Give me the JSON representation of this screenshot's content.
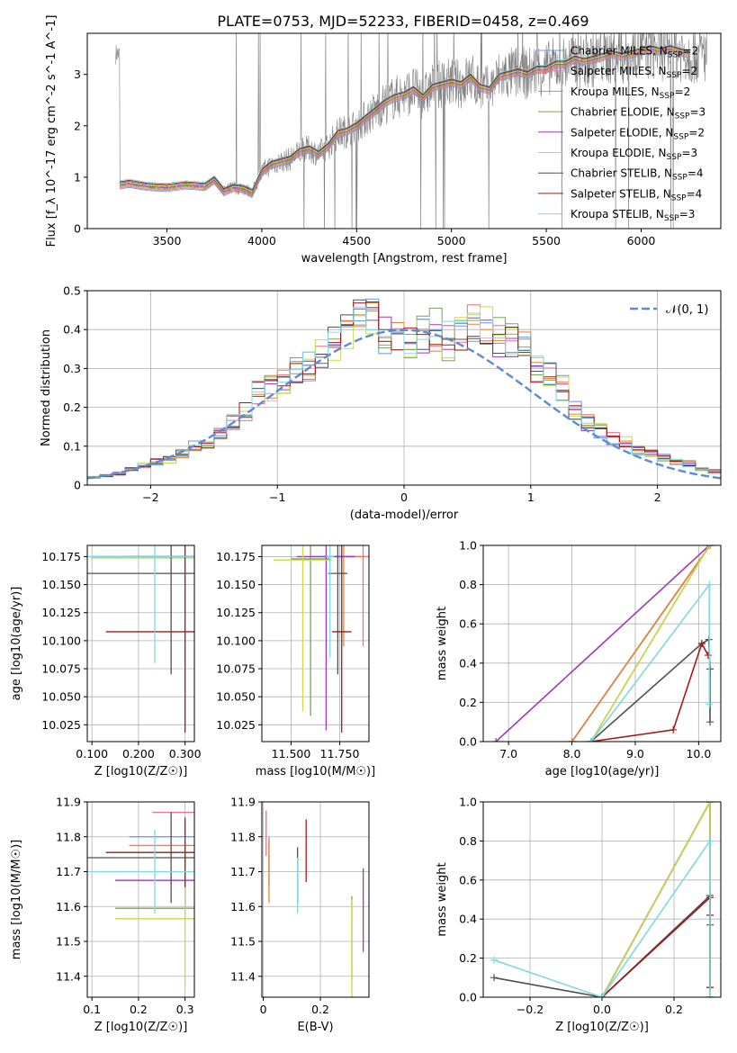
{
  "title": "PLATE=0753, MJD=52233, FIBERID=0458, z=0.469",
  "colors": {
    "Chabrier MILES": "#6495ed",
    "Salpeter MILES": "#e8718d",
    "Kroupa MILES": "#e0853a",
    "Chabrier ELODIE": "#7aa35a",
    "Salpeter ELODIE": "#9b3cb7",
    "Kroupa ELODIE": "#c9d94a",
    "Chabrier STELIB": "#505050",
    "Salpeter STELIB": "#a01a1a",
    "Kroupa STELIB": "#7fd8e0",
    "data": "#808080",
    "normal": "#5b8bd6"
  },
  "legend": [
    {
      "model": "Chabrier MILES",
      "n": "2"
    },
    {
      "model": "Salpeter MILES",
      "n": "2"
    },
    {
      "model": "Kroupa MILES",
      "n": "2"
    },
    {
      "model": "Chabrier ELODIE",
      "n": "3"
    },
    {
      "model": "Salpeter ELODIE",
      "n": "2"
    },
    {
      "model": "Kroupa ELODIE",
      "n": "3"
    },
    {
      "model": "Chabrier STELIB",
      "n": "4"
    },
    {
      "model": "Salpeter STELIB",
      "n": "4"
    },
    {
      "model": "Kroupa STELIB",
      "n": "3"
    }
  ],
  "chart_data": [
    {
      "id": "spectrum",
      "type": "line",
      "xlabel": "wavelength [Angstrom, rest frame]",
      "ylabel": "Flux [f_λ 10^-17 erg cm^-2 s^-1 A^-1]",
      "xlim": [
        3080,
        6420
      ],
      "ylim": [
        0,
        3.8
      ],
      "xticks": [
        3500,
        4000,
        4500,
        5000,
        5500,
        6000
      ],
      "yticks": [
        0,
        1,
        2,
        3
      ],
      "data_series": {
        "name": "data",
        "x_range": [
          3230,
          6350
        ],
        "note_points": [
          [
            3260,
            0.85
          ],
          [
            3400,
            0.8
          ],
          [
            3600,
            0.75
          ],
          [
            3800,
            0.8
          ],
          [
            4000,
            1.2
          ],
          [
            4200,
            1.5
          ],
          [
            4400,
            1.8
          ],
          [
            4600,
            2.4
          ],
          [
            4800,
            2.7
          ],
          [
            5000,
            2.9
          ],
          [
            5200,
            3.0
          ],
          [
            5400,
            3.1
          ],
          [
            5600,
            3.2
          ],
          [
            5800,
            3.3
          ],
          [
            6000,
            3.35
          ],
          [
            6200,
            3.4
          ]
        ]
      },
      "model_points": [
        [
          3250,
          0.85
        ],
        [
          3300,
          0.88
        ],
        [
          3400,
          0.82
        ],
        [
          3500,
          0.8
        ],
        [
          3600,
          0.85
        ],
        [
          3700,
          0.82
        ],
        [
          3750,
          0.95
        ],
        [
          3800,
          0.72
        ],
        [
          3850,
          0.8
        ],
        [
          3900,
          0.78
        ],
        [
          3950,
          0.7
        ],
        [
          4000,
          1.1
        ],
        [
          4050,
          1.25
        ],
        [
          4100,
          1.3
        ],
        [
          4150,
          1.35
        ],
        [
          4200,
          1.5
        ],
        [
          4250,
          1.55
        ],
        [
          4300,
          1.45
        ],
        [
          4350,
          1.6
        ],
        [
          4400,
          1.85
        ],
        [
          4450,
          1.9
        ],
        [
          4500,
          2.0
        ],
        [
          4550,
          2.15
        ],
        [
          4600,
          2.3
        ],
        [
          4650,
          2.45
        ],
        [
          4700,
          2.55
        ],
        [
          4750,
          2.6
        ],
        [
          4800,
          2.7
        ],
        [
          4850,
          2.55
        ],
        [
          4900,
          2.75
        ],
        [
          4950,
          2.8
        ],
        [
          5000,
          2.85
        ],
        [
          5050,
          2.8
        ],
        [
          5100,
          2.95
        ],
        [
          5150,
          2.75
        ],
        [
          5200,
          2.7
        ],
        [
          5250,
          2.95
        ],
        [
          5300,
          3.0
        ],
        [
          5350,
          3.05
        ],
        [
          5400,
          3.0
        ],
        [
          5450,
          3.1
        ],
        [
          5500,
          3.1
        ],
        [
          5550,
          3.2
        ],
        [
          5600,
          3.2
        ],
        [
          5650,
          3.3
        ],
        [
          5700,
          3.25
        ],
        [
          5750,
          3.3
        ],
        [
          5800,
          3.35
        ],
        [
          5850,
          3.4
        ],
        [
          5900,
          3.35
        ],
        [
          5950,
          3.4
        ],
        [
          6000,
          3.45
        ],
        [
          6050,
          3.5
        ],
        [
          6100,
          3.45
        ],
        [
          6150,
          3.5
        ],
        [
          6200,
          3.45
        ],
        [
          6250,
          3.4
        ]
      ]
    },
    {
      "id": "residuals",
      "type": "histogram",
      "xlabel": "(data-model)/error",
      "ylabel": "Normed distribution",
      "xlim": [
        -2.5,
        2.5
      ],
      "ylim": [
        0,
        0.5
      ],
      "xticks": [
        -2,
        -1,
        0,
        1,
        2
      ],
      "yticks": [
        0.0,
        0.1,
        0.2,
        0.3,
        0.4,
        0.5
      ],
      "bin_width": 0.1,
      "hist_shape": [
        0.02,
        0.025,
        0.03,
        0.035,
        0.04,
        0.05,
        0.06,
        0.065,
        0.08,
        0.09,
        0.1,
        0.11,
        0.13,
        0.16,
        0.19,
        0.22,
        0.24,
        0.25,
        0.27,
        0.3,
        0.31,
        0.32,
        0.35,
        0.37,
        0.39,
        0.42,
        0.43,
        0.4,
        0.38,
        0.37,
        0.38,
        0.39,
        0.4,
        0.38,
        0.37,
        0.39,
        0.41,
        0.42,
        0.38,
        0.36,
        0.37,
        0.35,
        0.3,
        0.28,
        0.25,
        0.22,
        0.19,
        0.16,
        0.14,
        0.12,
        0.11,
        0.1,
        0.09,
        0.08,
        0.07,
        0.06,
        0.055,
        0.05,
        0.04,
        0.035
      ],
      "normal_label": "𝒩(0, 1)"
    },
    {
      "id": "age_vs_Z",
      "type": "errorbar",
      "xlabel": "Z [log10(Z/Z☉)]",
      "ylabel": "age  [log10(age/yr)]",
      "xlim": [
        0.09,
        0.32
      ],
      "ylim": [
        10.01,
        10.185
      ],
      "xticks": [
        0.1,
        0.2,
        0.3
      ],
      "yticks": [
        10.025,
        10.05,
        10.075,
        10.1,
        10.125,
        10.15,
        10.175
      ],
      "points": [
        {
          "s": "Chabrier MILES",
          "x": 0.3,
          "xerr": 0.2,
          "y": 10.175,
          "yerr": 0.001
        },
        {
          "s": "Salpeter MILES",
          "x": 0.3,
          "xerr": 0.12,
          "y": 10.175,
          "yerr": 0.001
        },
        {
          "s": "Kroupa MILES",
          "x": 0.3,
          "xerr": 0.2,
          "y": 10.174,
          "yerr": 0.001
        },
        {
          "s": "Chabrier ELODIE",
          "x": 0.3,
          "xerr": 0.2,
          "y": 10.174,
          "yerr": 0.001
        },
        {
          "s": "Salpeter ELODIE",
          "x": 0.3,
          "xerr": 0.14,
          "y": 10.175,
          "yerr": 0.001
        },
        {
          "s": "Kroupa ELODIE",
          "x": 0.3,
          "xerr": 0.2,
          "y": 10.174,
          "yerr": 0.001
        },
        {
          "s": "Chabrier STELIB",
          "x": 0.27,
          "xerr": 0.18,
          "y": 10.16,
          "yerr": 0.09
        },
        {
          "s": "Salpeter STELIB",
          "x": 0.3,
          "xerr": 0.17,
          "y": 10.108,
          "yerr": 0.09
        },
        {
          "s": "Kroupa STELIB",
          "x": 0.235,
          "xerr": 0.15,
          "y": 10.175,
          "yerr": 0.095
        }
      ]
    },
    {
      "id": "age_vs_mass",
      "type": "errorbar",
      "xlabel": "mass [log10(M/M☉)]",
      "ylabel": "",
      "xlim": [
        11.35,
        11.9
      ],
      "ylim": [
        10.01,
        10.185
      ],
      "xticks": [
        11.5,
        11.75
      ],
      "yticks": [
        10.025,
        10.05,
        10.075,
        10.1,
        10.125,
        10.15,
        10.175
      ],
      "points": [
        {
          "s": "Chabrier MILES",
          "x": 11.7,
          "xerr": 0.09,
          "y": 10.175,
          "yerr": 0.001
        },
        {
          "s": "Salpeter MILES",
          "x": 11.87,
          "xerr": 0.09,
          "y": 10.175,
          "yerr": 0.08
        },
        {
          "s": "Kroupa MILES",
          "x": 11.77,
          "xerr": 0.1,
          "y": 10.175,
          "yerr": 0.08
        },
        {
          "s": "Chabrier ELODIE",
          "x": 11.6,
          "xerr": 0.1,
          "y": 10.173,
          "yerr": 0.14
        },
        {
          "s": "Salpeter ELODIE",
          "x": 11.68,
          "xerr": 0.15,
          "y": 10.175,
          "yerr": 0.155
        },
        {
          "s": "Kroupa ELODIE",
          "x": 11.56,
          "xerr": 0.15,
          "y": 10.172,
          "yerr": 0.135
        },
        {
          "s": "Chabrier STELIB",
          "x": 11.74,
          "xerr": 0.05,
          "y": 10.16,
          "yerr": 0.09
        },
        {
          "s": "Salpeter STELIB",
          "x": 11.76,
          "xerr": 0.05,
          "y": 10.108,
          "yerr": 0.09
        },
        {
          "s": "Kroupa STELIB",
          "x": 11.7,
          "xerr": 0.02,
          "y": 10.175,
          "yerr": 0.09
        }
      ]
    },
    {
      "id": "mw_vs_age",
      "type": "line",
      "xlabel": "age  [log10(age/yr)]",
      "ylabel": "mass weight",
      "xlim": [
        6.6,
        10.35
      ],
      "ylim": [
        0,
        1.0
      ],
      "xticks": [
        7,
        8,
        9,
        10
      ],
      "yticks": [
        0.0,
        0.2,
        0.4,
        0.6,
        0.8,
        1.0
      ],
      "series": [
        {
          "s": "Chabrier MILES",
          "x": [
            8.0,
            10.18
          ],
          "y": [
            0,
            1
          ]
        },
        {
          "s": "Salpeter MILES",
          "x": [
            8.0,
            10.18
          ],
          "y": [
            0,
            1
          ]
        },
        {
          "s": "Kroupa MILES",
          "x": [
            8.0,
            10.18
          ],
          "y": [
            0,
            1
          ]
        },
        {
          "s": "Chabrier ELODIE",
          "x": [
            8.3,
            10.17
          ],
          "y": [
            0,
            1
          ]
        },
        {
          "s": "Salpeter ELODIE",
          "x": [
            6.8,
            10.17
          ],
          "y": [
            0,
            1
          ]
        },
        {
          "s": "Kroupa ELODIE",
          "x": [
            8.3,
            10.17
          ],
          "y": [
            0,
            1
          ]
        },
        {
          "s": "Chabrier STELIB",
          "x": [
            8.3,
            10.05,
            10.16,
            10.18,
            10.18
          ],
          "y": [
            0,
            0.5,
            0.52,
            0.37,
            0.1
          ]
        },
        {
          "s": "Salpeter STELIB",
          "x": [
            8.3,
            9.6,
            10.05,
            10.15
          ],
          "y": [
            0,
            0.06,
            0.5,
            0.44
          ]
        },
        {
          "s": "Kroupa STELIB",
          "x": [
            8.3,
            10.17,
            10.17
          ],
          "y": [
            0,
            0.8,
            0.19
          ]
        }
      ]
    },
    {
      "id": "mass_vs_Z",
      "type": "errorbar",
      "xlabel": "Z [log10(Z/Z☉)]",
      "ylabel": "mass [log10(M/M☉)]",
      "xlim": [
        0.09,
        0.32
      ],
      "ylim": [
        11.34,
        11.9
      ],
      "xticks": [
        0.1,
        0.2,
        0.3
      ],
      "yticks": [
        11.4,
        11.5,
        11.6,
        11.7,
        11.8,
        11.9
      ],
      "points": [
        {
          "s": "Chabrier MILES",
          "x": 0.3,
          "xerr": 0.12,
          "y": 11.8,
          "yerr": 0.001
        },
        {
          "s": "Salpeter MILES",
          "x": 0.3,
          "xerr": 0.07,
          "y": 11.87,
          "yerr": 0.001
        },
        {
          "s": "Kroupa MILES",
          "x": 0.3,
          "xerr": 0.12,
          "y": 11.775,
          "yerr": 0.001
        },
        {
          "s": "Chabrier ELODIE",
          "x": 0.3,
          "xerr": 0.15,
          "y": 11.595,
          "yerr": 0.02
        },
        {
          "s": "Salpeter ELODIE",
          "x": 0.3,
          "xerr": 0.15,
          "y": 11.675,
          "yerr": 0.07
        },
        {
          "s": "Kroupa ELODIE",
          "x": 0.3,
          "xerr": 0.15,
          "y": 11.565,
          "yerr": 0.2
        },
        {
          "s": "Chabrier STELIB",
          "x": 0.27,
          "xerr": 0.18,
          "y": 11.74,
          "yerr": 0.13
        },
        {
          "s": "Salpeter STELIB",
          "x": 0.3,
          "xerr": 0.17,
          "y": 11.755,
          "yerr": 0.1
        },
        {
          "s": "Kroupa STELIB",
          "x": 0.235,
          "xerr": 0.15,
          "y": 11.7,
          "yerr": 0.12
        }
      ]
    },
    {
      "id": "mass_vs_ebv",
      "type": "errorbar",
      "xlabel": "E(B-V)",
      "ylabel": "",
      "xlim": [
        -0.005,
        0.37
      ],
      "ylim": [
        11.34,
        11.9
      ],
      "xticks": [
        0.0,
        0.2
      ],
      "yticks": [
        11.4,
        11.5,
        11.6,
        11.7,
        11.8,
        11.9
      ],
      "points": [
        {
          "s": "Chabrier MILES",
          "x": 0.02,
          "xerr": 0,
          "y": 11.73,
          "yerr": 0.07
        },
        {
          "s": "Salpeter MILES",
          "x": 0.01,
          "xerr": 0,
          "y": 11.81,
          "yerr": 0.065
        },
        {
          "s": "Kroupa MILES",
          "x": 0.02,
          "xerr": 0,
          "y": 11.7,
          "yerr": 0.09
        },
        {
          "s": "Chabrier ELODIE",
          "x": 0.31,
          "xerr": 0,
          "y": 11.51,
          "yerr": 0.12
        },
        {
          "s": "Salpeter ELODIE",
          "x": 0.35,
          "xerr": 0,
          "y": 11.59,
          "yerr": 0.12
        },
        {
          "s": "Kroupa ELODIE",
          "x": 0.31,
          "xerr": 0,
          "y": 11.48,
          "yerr": 0.14
        },
        {
          "s": "Chabrier STELIB",
          "x": 0.12,
          "xerr": 0,
          "y": 11.69,
          "yerr": 0.08
        },
        {
          "s": "Salpeter STELIB",
          "x": 0.15,
          "xerr": 0,
          "y": 11.76,
          "yerr": 0.09
        },
        {
          "s": "Kroupa STELIB",
          "x": 0.12,
          "xerr": 0,
          "y": 11.66,
          "yerr": 0.08
        }
      ]
    },
    {
      "id": "mw_vs_Z",
      "type": "line",
      "xlabel": "Z [log10(Z/Z☉)]",
      "ylabel": "mass weight",
      "xlim": [
        -0.33,
        0.33
      ],
      "ylim": [
        0,
        1.0
      ],
      "xticks": [
        -0.2,
        0.0,
        0.2
      ],
      "yticks": [
        0.0,
        0.2,
        0.4,
        0.6,
        0.8,
        1.0
      ],
      "series": [
        {
          "s": "Chabrier MILES",
          "x": [
            0,
            0.3,
            0.3
          ],
          "y": [
            0,
            1,
            0
          ]
        },
        {
          "s": "Salpeter MILES",
          "x": [
            0,
            0.3,
            0.3
          ],
          "y": [
            0,
            1,
            0
          ]
        },
        {
          "s": "Kroupa MILES",
          "x": [
            0,
            0.3,
            0.3
          ],
          "y": [
            0,
            1,
            0
          ]
        },
        {
          "s": "Chabrier ELODIE",
          "x": [
            0,
            0.3,
            0.3
          ],
          "y": [
            0,
            1,
            0
          ]
        },
        {
          "s": "Salpeter ELODIE",
          "x": [
            0,
            0.3,
            0.3
          ],
          "y": [
            0,
            1,
            0
          ]
        },
        {
          "s": "Kroupa ELODIE",
          "x": [
            0,
            0.3,
            0.3
          ],
          "y": [
            0,
            1,
            0
          ]
        },
        {
          "s": "Chabrier STELIB",
          "x": [
            -0.3,
            0,
            0.3,
            0.3,
            0.3
          ],
          "y": [
            0.1,
            0,
            0.52,
            0.37,
            0.05
          ]
        },
        {
          "s": "Salpeter STELIB",
          "x": [
            0,
            0.3,
            0.3,
            0.3
          ],
          "y": [
            0,
            0.51,
            0.42,
            0.05
          ]
        },
        {
          "s": "Kroupa STELIB",
          "x": [
            -0.3,
            0,
            0.3,
            0.3
          ],
          "y": [
            0.19,
            0,
            0.8,
            0.0
          ]
        }
      ]
    }
  ]
}
